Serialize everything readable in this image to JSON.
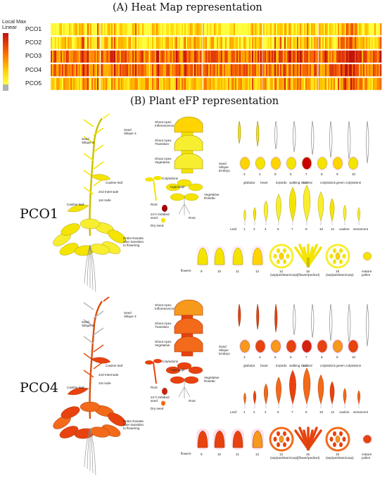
{
  "heatmap": {
    "title": "(A) Heat Map representation",
    "legend": {
      "line1": "Local Max",
      "line2": "Linear",
      "colors": [
        "#c01010",
        "#ff6a00",
        "#ffd000",
        "#ffff40",
        "#b0b0b0"
      ]
    },
    "rows": [
      "PCO1",
      "PCO2",
      "PCO3",
      "PCO4",
      "PCO5"
    ],
    "row_intensity": [
      0.15,
      0.25,
      0.75,
      0.7,
      0.4
    ]
  },
  "efp": {
    "title": "(B) Plant eFP representation",
    "panels": [
      {
        "label": "PCO1",
        "theme": "yellow",
        "plant_labels": {
          "seed_silique_4": "Seed\nSilique 4",
          "seed_silique_5": "Seed\nSilique 5",
          "cauline_leaf": "Cauline leaf",
          "internode2": "2nd Internode",
          "node1": "1st node",
          "cauline_leaf2": "Cauline leaf",
          "entire_rosette": "Entire Rosette\nafter transition\nto flowering"
        },
        "apex_labels": [
          "Shoot Apex\nInflorescence",
          "Shoot Apex\nTransition",
          "Shoot Apex\nVegetative"
        ],
        "seedling_labels": {
          "cotyledons": "Cotyledons",
          "hypocotyl": "Hypocotyl",
          "root": "Root",
          "imbibed": "24 h Imbibed\nseed",
          "dry_seed": "Dry seed",
          "vegetative": "Vegetative\nRosette",
          "root2": "Root"
        },
        "embryo_label": "Seed\nSilique\nEmbryo",
        "embryo_numbers": [
          "3",
          "4",
          "5",
          "6",
          "7",
          "8",
          "9",
          "10"
        ],
        "embryo_stages": [
          "globular",
          "heart",
          "torpedo",
          "walking stick",
          "curled",
          "cotyledons",
          "green cotyledons"
        ],
        "leaf_label": "Leaf",
        "leaf_numbers": [
          "1",
          "2",
          "4",
          "6",
          "7",
          "8",
          "10",
          "12",
          "cauline",
          "senescent"
        ],
        "flower_label": "flowers",
        "flower_numbers": [
          "9",
          "10",
          "11",
          "12",
          "12",
          "15",
          "15",
          "mature\npollen"
        ],
        "flower_sub": [
          "(sep/pet/stam/carp)",
          "(flower/pedicel)",
          "(sep/pet/stam/carp)"
        ]
      },
      {
        "label": "PCO4",
        "theme": "orange",
        "plant_labels": {
          "seed_silique_4": "Seed\nSilique 4",
          "seed_silique_5": "Seed\nSilique 5",
          "cauline_leaf": "Cauline leaf",
          "internode2": "2nd Internode",
          "node1": "1st node",
          "cauline_leaf2": "Cauline leaf",
          "entire_rosette": "Entire Rosette\nafter transition\nto flowering"
        },
        "apex_labels": [
          "Shoot Apex\nInflorescence",
          "Shoot Apex\nTransition",
          "Shoot Apex\nVegetative"
        ],
        "seedling_labels": {
          "cotyledons": "Cotyledons",
          "hypocotyl": "Hypocotyl",
          "root": "Root",
          "imbibed": "24 h Imbibed\nseed",
          "dry_seed": "Dry seed",
          "vegetative": "Vegetative\nRosette",
          "root2": "Root"
        },
        "embryo_label": "Seed\nSilique\nEmbryo",
        "embryo_numbers": [
          "3",
          "4",
          "5",
          "6",
          "7",
          "8",
          "9",
          "10"
        ],
        "embryo_stages": [
          "globular",
          "heart",
          "torpedo",
          "walking stick",
          "curled",
          "cotyledons",
          "green cotyledons"
        ],
        "leaf_label": "Leaf",
        "leaf_numbers": [
          "1",
          "2",
          "4",
          "6",
          "7",
          "8",
          "10",
          "12",
          "cauline",
          "senescent"
        ],
        "flower_label": "flowers",
        "flower_numbers": [
          "9",
          "10",
          "11",
          "12",
          "12",
          "15",
          "15",
          "mature\npollen"
        ],
        "flower_sub": [
          "(sep/pet/stam/carp)",
          "(flower/pedicel)",
          "(sep/pet/stam/carp)"
        ]
      }
    ]
  }
}
